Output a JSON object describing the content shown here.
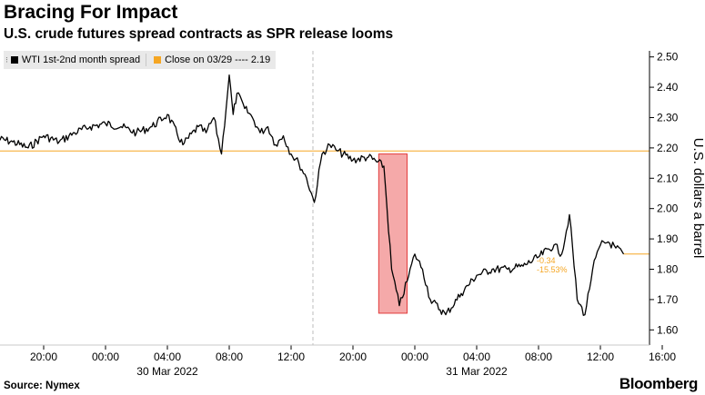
{
  "title": "Bracing For Impact",
  "subtitle": "U.S. crude futures spread contracts as SPR release looms",
  "source": "Source: Nymex",
  "brand": "Bloomberg",
  "colors": {
    "series": "#000000",
    "reference": "#f5a623",
    "highlight": "#f4a0a0",
    "highlight_border": "#e23c3c"
  },
  "legend": {
    "series_label": "WTI 1st-2nd month spread",
    "reference_label": "Close on 03/29 ---- 2.19"
  },
  "annotation": {
    "change": "-0.34",
    "pct": "-15.53%"
  },
  "chart_data": {
    "type": "line",
    "ylabel": "U.S. dollars a barrel",
    "ylim": [
      1.55,
      2.52
    ],
    "yticks": [
      "2.50",
      "2.40",
      "2.30",
      "2.20",
      "2.10",
      "2.00",
      "1.90",
      "1.80",
      "1.70",
      "1.60"
    ],
    "xticks": [
      "20:00",
      "00:00",
      "04:00",
      "08:00",
      "12:00",
      "20:00",
      "00:00",
      "04:00",
      "08:00",
      "12:00",
      "16:00"
    ],
    "date_labels": [
      "30 Mar 2022",
      "31 Mar 2022"
    ],
    "reference_value": 2.19,
    "last_value": 1.85,
    "series": [
      {
        "name": "WTI 1st-2nd month spread",
        "x": [
          "03/29 17:00",
          "03/29 18:00",
          "03/29 19:00",
          "03/29 20:00",
          "03/29 21:00",
          "03/29 22:00",
          "03/29 23:00",
          "03/30 00:00",
          "03/30 01:00",
          "03/30 02:00",
          "03/30 03:00",
          "03/30 04:00",
          "03/30 05:00",
          "03/30 06:00",
          "03/30 06:30",
          "03/30 07:00",
          "03/30 07:30",
          "03/30 08:00",
          "03/30 08:15",
          "03/30 08:30",
          "03/30 09:00",
          "03/30 09:30",
          "03/30 10:00",
          "03/30 10:30",
          "03/30 11:00",
          "03/30 11:30",
          "03/30 12:00",
          "03/30 12:30",
          "03/30 13:00",
          "03/30 13:30",
          "03/30 14:00",
          "03/30 14:30",
          "03/30 15:00",
          "03/30 16:00",
          "03/30 17:00",
          "03/30 18:00",
          "03/30 18:30",
          "03/30 19:00",
          "03/30 19:30",
          "03/30 20:00",
          "03/30 20:30",
          "03/30 21:00",
          "03/30 22:00",
          "03/30 23:00",
          "03/31 00:00",
          "03/31 01:00",
          "03/31 02:00",
          "03/31 03:00",
          "03/31 04:00",
          "03/31 05:00",
          "03/31 05:30",
          "03/31 06:00",
          "03/31 06:30",
          "03/31 07:00",
          "03/31 07:30",
          "03/31 08:00",
          "03/31 08:30",
          "03/31 09:00",
          "03/31 09:30"
        ],
        "values": [
          2.23,
          2.22,
          2.2,
          2.24,
          2.22,
          2.25,
          2.27,
          2.28,
          2.27,
          2.25,
          2.27,
          2.31,
          2.21,
          2.27,
          2.25,
          2.3,
          2.18,
          2.44,
          2.31,
          2.38,
          2.33,
          2.3,
          2.25,
          2.27,
          2.21,
          2.24,
          2.18,
          2.15,
          2.1,
          2.02,
          2.18,
          2.21,
          2.19,
          2.16,
          2.17,
          2.14,
          1.8,
          1.68,
          1.76,
          1.85,
          1.8,
          1.7,
          1.65,
          1.72,
          1.78,
          1.8,
          1.8,
          1.81,
          1.84,
          1.88,
          1.85,
          1.98,
          1.7,
          1.65,
          1.8,
          1.88,
          1.89,
          1.87,
          1.85
        ]
      }
    ]
  }
}
